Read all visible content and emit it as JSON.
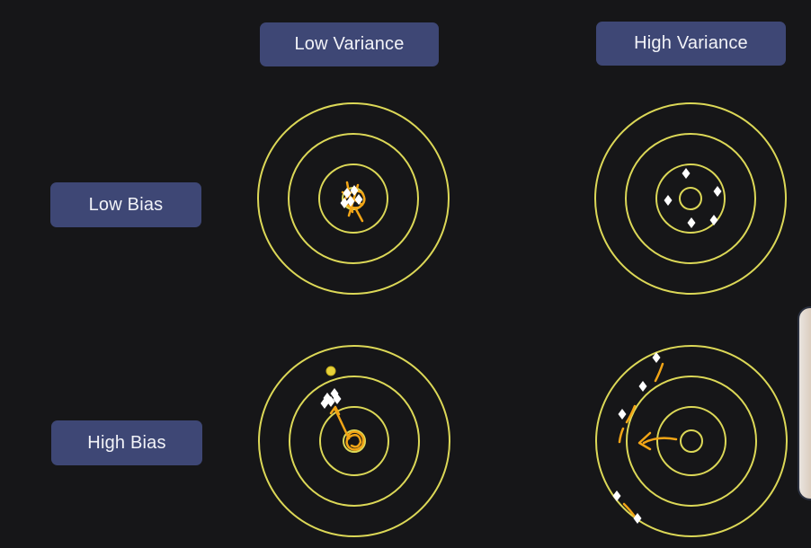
{
  "headers": {
    "low_variance": "Low Variance",
    "high_variance": "High Variance"
  },
  "rows": {
    "low_bias": "Low Bias",
    "high_bias": "High Bias"
  },
  "colors": {
    "background": "#161618",
    "label_bg": "#3e4775",
    "label_text": "#f2f3f8",
    "ring": "#dcd857",
    "dot": "#ffffff",
    "annotation": "#f2a516"
  },
  "icons": {
    "dot_shape": "diamond",
    "ring_count": 4
  }
}
